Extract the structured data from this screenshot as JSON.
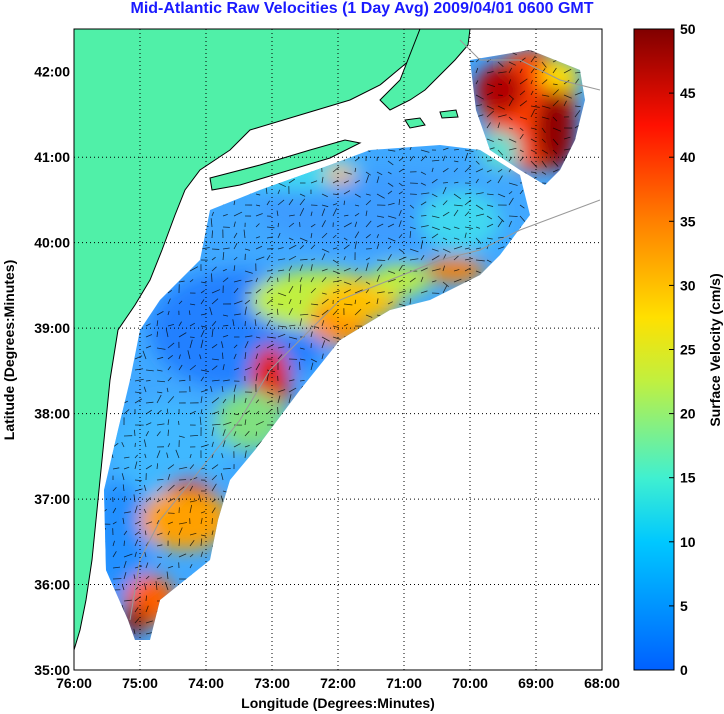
{
  "title": "Mid-Atlantic Raw Velocities (1 Day Avg) 2009/04/01 0600 GMT",
  "x_axis": {
    "label": "Longitude (Degrees:Minutes)",
    "ticks": [
      "76:00",
      "75:00",
      "74:00",
      "73:00",
      "72:00",
      "71:00",
      "70:00",
      "69:00",
      "68:00"
    ]
  },
  "y_axis": {
    "label": "Latitude (Degrees:Minutes)",
    "ticks": [
      "42:00",
      "41:00",
      "40:00",
      "39:00",
      "38:00",
      "37:00",
      "36:00",
      "35:00"
    ]
  },
  "colorbar": {
    "label": "Surface Velocity (cm/s)",
    "ticks": [
      "50",
      "45",
      "40",
      "35",
      "30",
      "25",
      "20",
      "15",
      "10",
      "5",
      "0"
    ],
    "min": 0,
    "max": 50
  },
  "colors": {
    "land": "#50f0a8",
    "title": "#1a1aff",
    "background": "#ffffff"
  },
  "chart_data": {
    "type": "heatmap",
    "x_range_deg_west": [
      76,
      68
    ],
    "y_range_deg_north": [
      35,
      42.5
    ],
    "grid": true,
    "colorbar_range": [
      0,
      50
    ]
  }
}
